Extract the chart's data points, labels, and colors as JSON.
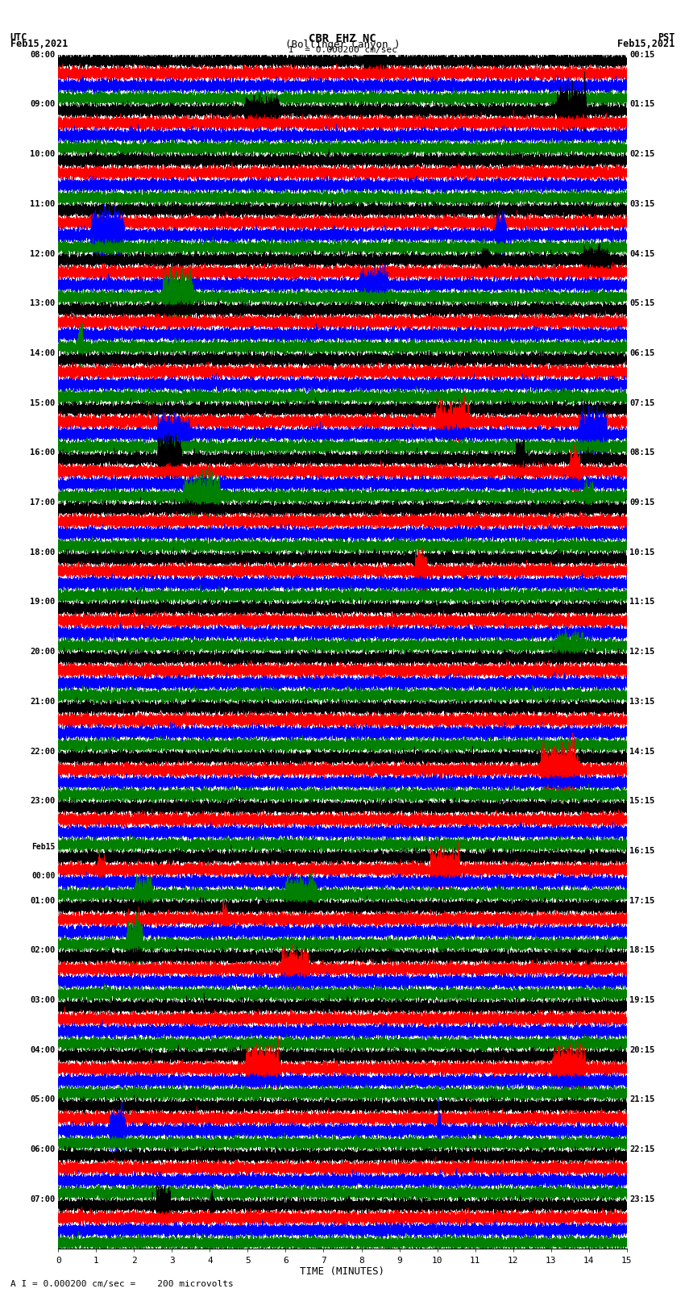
{
  "title_line1": "CBR EHZ NC",
  "title_line2": "(Bollinger Canyon )",
  "scale_label": "I  = 0.000200 cm/sec",
  "footer_label": "A I = 0.000200 cm/sec =    200 microvolts",
  "xlabel": "TIME (MINUTES)",
  "utc_label": "UTC\nFeb15,2021",
  "pst_label": "PST\nFeb15,2021",
  "left_times": [
    "08:00",
    "09:00",
    "10:00",
    "11:00",
    "12:00",
    "13:00",
    "14:00",
    "15:00",
    "16:00",
    "17:00",
    "18:00",
    "19:00",
    "20:00",
    "21:00",
    "22:00",
    "23:00",
    "Feb15\n00:00",
    "01:00",
    "02:00",
    "03:00",
    "04:00",
    "05:00",
    "06:00",
    "07:00"
  ],
  "right_times": [
    "00:15",
    "01:15",
    "02:15",
    "03:15",
    "04:15",
    "05:15",
    "06:15",
    "07:15",
    "08:15",
    "09:15",
    "10:15",
    "11:15",
    "12:15",
    "13:15",
    "14:15",
    "15:15",
    "16:15",
    "17:15",
    "18:15",
    "19:15",
    "20:15",
    "21:15",
    "22:15",
    "23:15"
  ],
  "colors": [
    "black",
    "red",
    "blue",
    "green"
  ],
  "bg_color": "white",
  "num_rows": 24,
  "traces_per_row": 4,
  "minutes": 15,
  "sample_rate": 50,
  "fig_width": 8.5,
  "fig_height": 16.13,
  "dpi": 100
}
